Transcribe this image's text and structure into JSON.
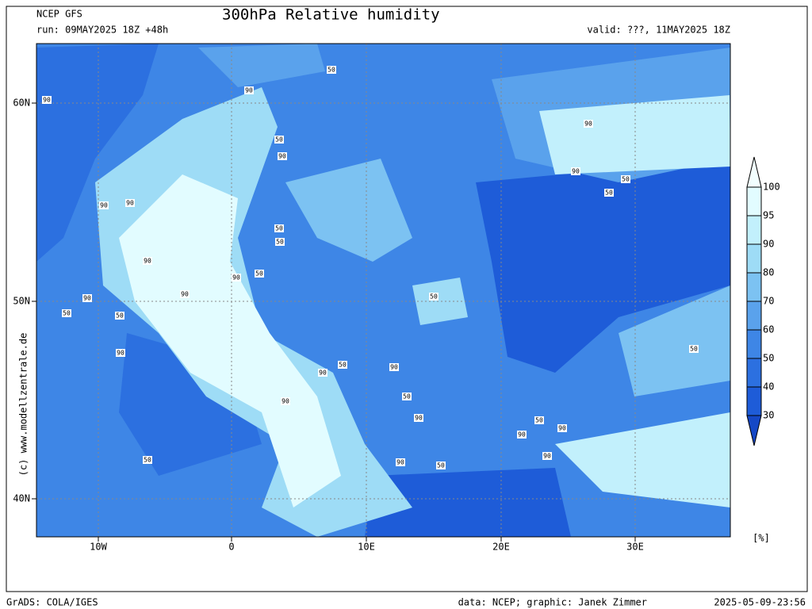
{
  "header": {
    "model": "NCEP GFS",
    "title": "300hPa Relative humidity",
    "run": "run: 09MAY2025 18Z +48h",
    "valid": "valid: ???, 11MAY2025 18Z"
  },
  "map": {
    "lat_labels": [
      "60N",
      "50N",
      "40N"
    ],
    "lon_labels": [
      "10W",
      "0",
      "10E",
      "20E",
      "30E"
    ],
    "watermark": "(c) www.modellzentrale.de",
    "contour_labels": [
      "90",
      "50",
      "90",
      "50",
      "90",
      "90",
      "90",
      "50",
      "50",
      "50",
      "90",
      "50",
      "90",
      "90",
      "50",
      "90",
      "50",
      "50",
      "90",
      "90",
      "50",
      "50",
      "90",
      "50",
      "50",
      "90",
      "90",
      "90",
      "50",
      "90",
      "90",
      "50",
      "50",
      "90",
      "90",
      "90"
    ]
  },
  "colorbar": {
    "labels": [
      "100",
      "95",
      "90",
      "80",
      "70",
      "60",
      "50",
      "40",
      "30"
    ],
    "colors": [
      "#e2fcff",
      "#c2f0fc",
      "#9edcf6",
      "#7cc2f2",
      "#5aa2ec",
      "#3e86e6",
      "#2c70e0",
      "#1e5cd8"
    ],
    "above_color": "#f2ffff",
    "below_color": "#1548c6",
    "unit": "[%]"
  },
  "footer": {
    "left": "GrADS: COLA/IGES",
    "center": "data: NCEP; graphic: Janek Zimmer",
    "right": "2025-05-09-23:56"
  }
}
